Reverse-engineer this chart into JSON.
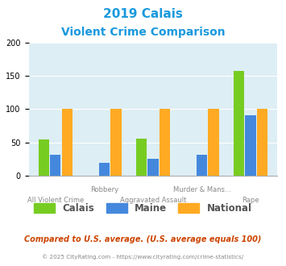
{
  "title_line1": "2019 Calais",
  "title_line2": "Violent Crime Comparison",
  "categories": [
    "All Violent Crime",
    "Robbery",
    "Aggravated Assault",
    "Murder & Mans...",
    "Rape"
  ],
  "calais_values": [
    54,
    0,
    55,
    0,
    157
  ],
  "maine_values": [
    31,
    19,
    25,
    31,
    91
  ],
  "national_values": [
    100,
    100,
    100,
    100,
    100
  ],
  "calais_color": "#77cc22",
  "maine_color": "#4488dd",
  "national_color": "#ffaa22",
  "bg_color": "#ddeef5",
  "ylim": [
    0,
    200
  ],
  "yticks": [
    0,
    50,
    100,
    150,
    200
  ],
  "title_color": "#1a99dd",
  "footer_text": "Compared to U.S. average. (U.S. average equals 100)",
  "footer_color": "#cc4400",
  "credit_text": "© 2025 CityRating.com - https://www.cityrating.com/crime-statistics/",
  "credit_color": "#888888",
  "bar_width": 0.22,
  "legend_label_color": "#555555"
}
